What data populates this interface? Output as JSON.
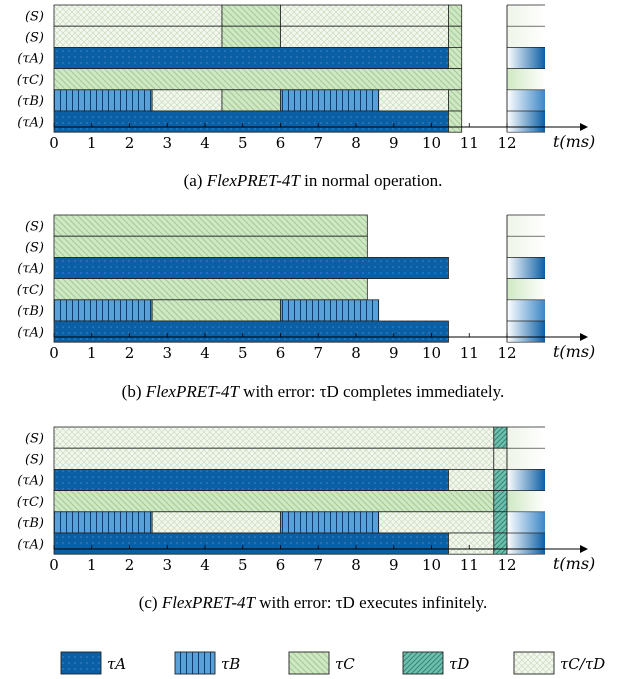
{
  "legend": [
    {
      "key": "A",
      "label": "τA"
    },
    {
      "key": "B",
      "label": "τB"
    },
    {
      "key": "C",
      "label": "τC"
    },
    {
      "key": "D",
      "label": "τD"
    },
    {
      "key": "CD",
      "label": "τC/τD"
    }
  ],
  "colors": {
    "A": "#0b5fa5",
    "B": "#5aa0d8",
    "C": "#cfe8c4",
    "D": "#6fbfae",
    "CD": "#f3f7ee"
  },
  "panels": [
    {
      "caption_label": "(a) ",
      "caption_system": "FlexPRET-4T",
      "caption_text": " in normal operation.",
      "axis_ticks": [
        "0",
        "1",
        "2",
        "3",
        "4",
        "5",
        "6",
        "7",
        "8",
        "9",
        "10",
        "11",
        "12"
      ],
      "axis_label": "t(ms)",
      "rows": [
        {
          "label": "(S)",
          "segments": [
            {
              "s": 0,
              "e": 4.45,
              "t": "CD"
            },
            {
              "s": 4.45,
              "e": 6.0,
              "t": "C"
            },
            {
              "s": 6.0,
              "e": 10.45,
              "t": "CD"
            },
            {
              "s": 10.45,
              "e": 10.8,
              "t": "C"
            }
          ],
          "tail": "CD"
        },
        {
          "label": "(S)",
          "segments": [
            {
              "s": 0,
              "e": 4.45,
              "t": "CD"
            },
            {
              "s": 4.45,
              "e": 6.0,
              "t": "C"
            },
            {
              "s": 6.0,
              "e": 10.45,
              "t": "CD"
            },
            {
              "s": 10.45,
              "e": 10.8,
              "t": "C"
            }
          ],
          "tail": "CD"
        },
        {
          "label": "(τA)",
          "segments": [
            {
              "s": 0,
              "e": 10.45,
              "t": "A"
            },
            {
              "s": 10.45,
              "e": 10.8,
              "t": "C"
            }
          ],
          "tail": "A"
        },
        {
          "label": "(τC)",
          "segments": [
            {
              "s": 0,
              "e": 10.8,
              "t": "C"
            }
          ],
          "tail": "C"
        },
        {
          "label": "(τB)",
          "segments": [
            {
              "s": 0,
              "e": 2.6,
              "t": "B"
            },
            {
              "s": 2.6,
              "e": 4.45,
              "t": "CD"
            },
            {
              "s": 4.45,
              "e": 6.0,
              "t": "C"
            },
            {
              "s": 6.0,
              "e": 8.6,
              "t": "B"
            },
            {
              "s": 8.6,
              "e": 10.45,
              "t": "CD"
            },
            {
              "s": 10.45,
              "e": 10.8,
              "t": "C"
            }
          ],
          "tail": "B"
        },
        {
          "label": "(τA)",
          "segments": [
            {
              "s": 0,
              "e": 10.45,
              "t": "A"
            },
            {
              "s": 10.45,
              "e": 10.8,
              "t": "C"
            }
          ],
          "tail": "A"
        }
      ]
    },
    {
      "caption_label": "(b) ",
      "caption_system": "FlexPRET-4T",
      "caption_text": " with error: τD completes immediately.",
      "axis_ticks": [
        "0",
        "1",
        "2",
        "3",
        "4",
        "5",
        "6",
        "7",
        "8",
        "9",
        "10",
        "11",
        "12"
      ],
      "axis_label": "t(ms)",
      "rows": [
        {
          "label": "(S)",
          "segments": [
            {
              "s": 0,
              "e": 8.3,
              "t": "C"
            }
          ],
          "tail": "CD"
        },
        {
          "label": "(S)",
          "segments": [
            {
              "s": 0,
              "e": 8.3,
              "t": "C"
            }
          ],
          "tail": "CD"
        },
        {
          "label": "(τA)",
          "segments": [
            {
              "s": 0,
              "e": 10.45,
              "t": "A"
            }
          ],
          "tail": "A"
        },
        {
          "label": "(τC)",
          "segments": [
            {
              "s": 0,
              "e": 8.3,
              "t": "C"
            }
          ],
          "tail": "C"
        },
        {
          "label": "(τB)",
          "segments": [
            {
              "s": 0,
              "e": 2.6,
              "t": "B"
            },
            {
              "s": 2.6,
              "e": 6.0,
              "t": "C"
            },
            {
              "s": 6.0,
              "e": 8.6,
              "t": "B"
            }
          ],
          "tail": "B"
        },
        {
          "label": "(τA)",
          "segments": [
            {
              "s": 0,
              "e": 10.45,
              "t": "A"
            }
          ],
          "tail": "A"
        }
      ]
    },
    {
      "caption_label": "(c) ",
      "caption_system": "FlexPRET-4T",
      "caption_text": " with error: τD executes infinitely.",
      "axis_ticks": [
        "0",
        "1",
        "2",
        "3",
        "4",
        "5",
        "6",
        "7",
        "8",
        "9",
        "10",
        "11",
        "12"
      ],
      "axis_label": "t(ms)",
      "rows": [
        {
          "label": "(S)",
          "segments": [
            {
              "s": 0,
              "e": 11.65,
              "t": "CD"
            },
            {
              "s": 11.65,
              "e": 12.0,
              "t": "D"
            }
          ],
          "tail": "CD"
        },
        {
          "label": "(S)",
          "segments": [
            {
              "s": 0,
              "e": 11.65,
              "t": "CD"
            },
            {
              "s": 11.65,
              "e": 12.0,
              "t": "CD"
            }
          ],
          "tail": "CD"
        },
        {
          "label": "(τA)",
          "segments": [
            {
              "s": 0,
              "e": 10.45,
              "t": "A"
            },
            {
              "s": 10.45,
              "e": 11.65,
              "t": "CD"
            },
            {
              "s": 11.65,
              "e": 12.0,
              "t": "D"
            }
          ],
          "tail": "A"
        },
        {
          "label": "(τC)",
          "segments": [
            {
              "s": 0,
              "e": 11.65,
              "t": "C"
            },
            {
              "s": 11.65,
              "e": 12.0,
              "t": "D"
            }
          ],
          "tail": "C"
        },
        {
          "label": "(τB)",
          "segments": [
            {
              "s": 0,
              "e": 2.6,
              "t": "B"
            },
            {
              "s": 2.6,
              "e": 6.0,
              "t": "CD"
            },
            {
              "s": 6.0,
              "e": 8.6,
              "t": "B"
            },
            {
              "s": 8.6,
              "e": 11.65,
              "t": "CD"
            },
            {
              "s": 11.65,
              "e": 12.0,
              "t": "D"
            }
          ],
          "tail": "B"
        },
        {
          "label": "(τA)",
          "segments": [
            {
              "s": 0,
              "e": 10.45,
              "t": "A"
            },
            {
              "s": 10.45,
              "e": 11.65,
              "t": "CD"
            },
            {
              "s": 11.65,
              "e": 12.0,
              "t": "D"
            }
          ],
          "tail": "A"
        }
      ]
    }
  ]
}
